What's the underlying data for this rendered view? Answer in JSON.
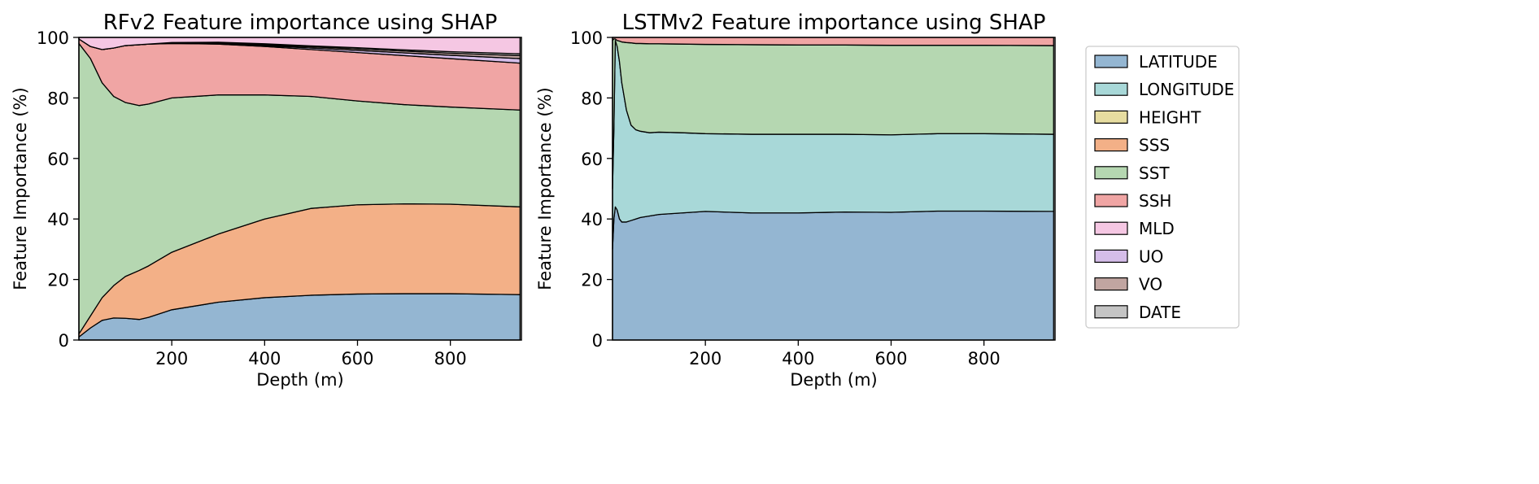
{
  "chart_data": [
    {
      "type": "area",
      "stacked": true,
      "title": "RFv2 Feature importance using SHAP",
      "xlabel": "Depth (m)",
      "ylabel": "Feature Importance (%)",
      "xlim": [
        0,
        953
      ],
      "ylim": [
        0,
        100
      ],
      "xticks": [
        200,
        400,
        600,
        800
      ],
      "yticks": [
        0,
        20,
        40,
        60,
        80,
        100
      ],
      "x": [
        0,
        25,
        50,
        75,
        100,
        130,
        150,
        200,
        300,
        400,
        500,
        600,
        700,
        800,
        950
      ],
      "stack_order": [
        "LATITUDE",
        "LONGITUDE",
        "HEIGHT",
        "SSS",
        "SST",
        "SSH",
        "UO",
        "VO",
        "DATE",
        "MLD"
      ],
      "series": [
        {
          "name": "LATITUDE",
          "values": [
            1,
            4,
            6.5,
            7.3,
            7.2,
            6.8,
            7.5,
            10,
            12.5,
            14,
            14.8,
            15.2,
            15.3,
            15.3,
            15
          ]
        },
        {
          "name": "LONGITUDE",
          "values": [
            0,
            0,
            0,
            0,
            0,
            0,
            0,
            0,
            0,
            0,
            0,
            0,
            0,
            0,
            0
          ]
        },
        {
          "name": "HEIGHT",
          "values": [
            0,
            0,
            0,
            0,
            0,
            0,
            0,
            0,
            0,
            0,
            0,
            0,
            0,
            0,
            0
          ]
        },
        {
          "name": "SSS",
          "values": [
            1,
            4,
            7.5,
            10.7,
            13.8,
            16.2,
            17,
            19,
            22.5,
            26,
            28.7,
            29.5,
            29.7,
            29.6,
            29
          ]
        },
        {
          "name": "SST",
          "values": [
            96,
            85,
            71,
            62.5,
            57.5,
            54.5,
            53.5,
            51,
            46,
            41,
            37,
            34.3,
            32.8,
            32.1,
            32
          ]
        },
        {
          "name": "SSH",
          "values": [
            1.5,
            4,
            11,
            16,
            18.8,
            20.1,
            19.8,
            18,
            16.8,
            16,
            15.5,
            16,
            16.2,
            16,
            15.5
          ]
        },
        {
          "name": "MLD",
          "values": [
            0.5,
            3,
            4,
            3.5,
            2.7,
            2.4,
            2.2,
            1.7,
            1.6,
            2.1,
            2.8,
            3.4,
            4.1,
            4.7,
            5.4
          ]
        },
        {
          "name": "UO",
          "values": [
            0,
            0,
            0,
            0,
            0,
            0,
            0,
            0.1,
            0.2,
            0.3,
            0.5,
            0.7,
            0.9,
            1.1,
            1.5
          ]
        },
        {
          "name": "VO",
          "values": [
            0,
            0,
            0,
            0,
            0,
            0,
            0,
            0.1,
            0.2,
            0.3,
            0.4,
            0.5,
            0.6,
            0.7,
            1
          ]
        },
        {
          "name": "DATE",
          "values": [
            0,
            0,
            0,
            0,
            0,
            0,
            0,
            0.1,
            0.2,
            0.3,
            0.3,
            0.4,
            0.4,
            0.5,
            0.6
          ]
        }
      ]
    },
    {
      "type": "area",
      "stacked": true,
      "title": "LSTMv2 Feature importance using SHAP",
      "xlabel": "Depth (m)",
      "ylabel": "Feature Importance (%)",
      "xlim": [
        0,
        953
      ],
      "ylim": [
        0,
        100
      ],
      "xticks": [
        200,
        400,
        600,
        800
      ],
      "yticks": [
        0,
        20,
        40,
        60,
        80,
        100
      ],
      "x": [
        0,
        3,
        6,
        10,
        15,
        20,
        30,
        40,
        50,
        60,
        80,
        100,
        150,
        200,
        300,
        400,
        500,
        600,
        700,
        800,
        950
      ],
      "stack_order": [
        "LATITUDE",
        "LONGITUDE",
        "HEIGHT",
        "SSS",
        "SST",
        "SSH",
        "UO",
        "VO",
        "DATE",
        "MLD"
      ],
      "series": [
        {
          "name": "LATITUDE",
          "values": [
            30,
            40,
            44,
            43,
            40,
            39,
            39,
            39.5,
            40,
            40.5,
            41,
            41.5,
            42,
            42.5,
            42,
            42,
            42.3,
            42.2,
            42.6,
            42.6,
            42.5
          ]
        },
        {
          "name": "LONGITUDE",
          "values": [
            20,
            30,
            55,
            54,
            52,
            46,
            37,
            31.5,
            29.5,
            28.5,
            27.5,
            27.2,
            26.5,
            25.7,
            26,
            26,
            25.7,
            25.6,
            25.6,
            25.6,
            25.5
          ]
        },
        {
          "name": "HEIGHT",
          "values": [
            0,
            0,
            0,
            0,
            0,
            0,
            0,
            0,
            0,
            0,
            0,
            0,
            0,
            0,
            0,
            0,
            0,
            0,
            0,
            0,
            0
          ]
        },
        {
          "name": "SSS",
          "values": [
            0,
            0,
            0,
            0,
            0,
            0,
            0,
            0,
            0,
            0,
            0,
            0,
            0,
            0,
            0,
            0,
            0,
            0,
            0,
            0,
            0
          ]
        },
        {
          "name": "SST",
          "values": [
            49,
            29.5,
            0.5,
            2,
            6.8,
            13.5,
            22.3,
            27.2,
            28.5,
            29,
            29.4,
            29.2,
            29.3,
            29.5,
            29.6,
            29.5,
            29.5,
            29.6,
            29.2,
            29.2,
            29.3
          ]
        },
        {
          "name": "SSH",
          "values": [
            1,
            0.5,
            0.5,
            1,
            1.2,
            1.5,
            1.7,
            1.8,
            2,
            2,
            2.1,
            2.1,
            2.2,
            2.3,
            2.4,
            2.5,
            2.5,
            2.6,
            2.6,
            2.6,
            2.7
          ]
        },
        {
          "name": "MLD",
          "values": [
            0,
            0,
            0,
            0,
            0,
            0,
            0,
            0,
            0,
            0,
            0,
            0,
            0,
            0,
            0,
            0,
            0,
            0,
            0,
            0,
            0
          ]
        },
        {
          "name": "UO",
          "values": [
            0,
            0,
            0,
            0,
            0,
            0,
            0,
            0,
            0,
            0,
            0,
            0,
            0,
            0,
            0,
            0,
            0,
            0,
            0,
            0,
            0
          ]
        },
        {
          "name": "VO",
          "values": [
            0,
            0,
            0,
            0,
            0,
            0,
            0,
            0,
            0,
            0,
            0,
            0,
            0,
            0,
            0,
            0,
            0,
            0,
            0,
            0,
            0
          ]
        },
        {
          "name": "DATE",
          "values": [
            0,
            0,
            0,
            0,
            0,
            0,
            0,
            0,
            0,
            0,
            0,
            0,
            0,
            0,
            0,
            0,
            0,
            0,
            0,
            0,
            0
          ]
        }
      ]
    }
  ],
  "legend": {
    "placement": "right",
    "entries": [
      "LATITUDE",
      "LONGITUDE",
      "HEIGHT",
      "SSS",
      "SST",
      "SSH",
      "MLD",
      "UO",
      "VO",
      "DATE"
    ]
  },
  "colors": {
    "LATITUDE": "#94b6d2",
    "LONGITUDE": "#a8d8d8",
    "HEIGHT": "#e6dca0",
    "SSS": "#f3b087",
    "SST": "#b5d7b1",
    "SSH": "#f0a5a4",
    "MLD": "#f5c7e3",
    "UO": "#d5bde9",
    "VO": "#c1a5a1",
    "DATE": "#c4c4c4"
  }
}
